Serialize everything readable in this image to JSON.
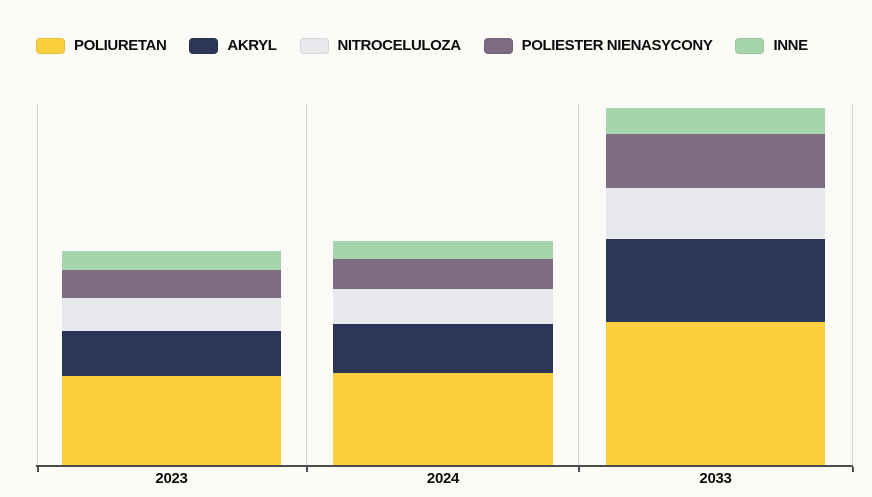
{
  "legend": {
    "items": [
      {
        "label": "POLIURETAN",
        "color": "#FBD03D"
      },
      {
        "label": "AKRYL",
        "color": "#2B3756"
      },
      {
        "label": "NITROCELULOZA",
        "color": "#E7E9ED"
      },
      {
        "label": "POLIESTER NIENASYCONY",
        "color": "#7D6C83"
      },
      {
        "label": "INNE",
        "color": "#A6D4AB"
      }
    ]
  },
  "chart_data": {
    "type": "bar",
    "stacked": true,
    "title": "",
    "xlabel": "",
    "ylabel": "",
    "categories": [
      "2023",
      "2024",
      "2033"
    ],
    "series": [
      {
        "name": "POLIURETAN",
        "color": "#FBD03D",
        "values": [
          24.5,
          25.5,
          39.5
        ]
      },
      {
        "name": "AKRYL",
        "color": "#2B3756",
        "values": [
          12.5,
          13.5,
          23.0
        ]
      },
      {
        "name": "NITROCELULOZA",
        "color": "#E7E9ED",
        "values": [
          9.0,
          9.5,
          14.0
        ]
      },
      {
        "name": "POLIESTER NIENASYCONY",
        "color": "#7D6C83",
        "values": [
          8.0,
          8.5,
          15.0
        ]
      },
      {
        "name": "INNE",
        "color": "#A6D4AB",
        "values": [
          5.0,
          5.0,
          7.0
        ]
      }
    ],
    "totals_estimated": [
      59.0,
      62.0,
      98.5
    ],
    "values_note": "estimated relative units read from bar heights; axis unlabeled",
    "ylim": [
      0,
      100
    ],
    "grid": "vertical category separators only",
    "legend_position": "top"
  },
  "colors": {
    "background": "#FCFBF7",
    "gridline": "#D8D7D2",
    "axis": "#4C4C4C",
    "text": "#0D0D0D"
  }
}
